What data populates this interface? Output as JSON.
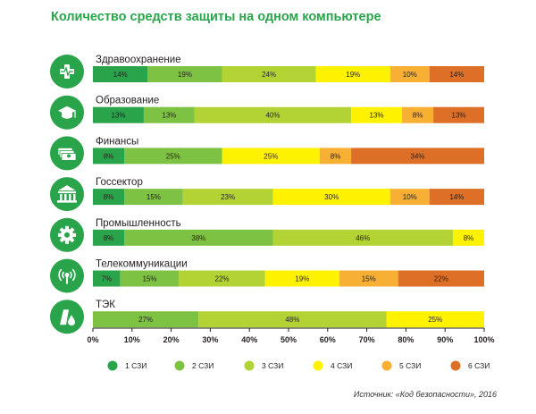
{
  "title": "Количество средств защиты на одном компьютере",
  "source": "Источник: «Код безопасности», 2016",
  "colors": {
    "icon_bg": "#2aa44a",
    "axis": "#231f20",
    "segments": [
      "#2aa44a",
      "#7dc242",
      "#b3d335",
      "#fff200",
      "#f7b033",
      "#dd6f27"
    ]
  },
  "chart_data": {
    "type": "bar",
    "orientation": "horizontal",
    "stacked": true,
    "title": "Количество средств защиты на одном компьютере",
    "xlim": [
      0,
      100
    ],
    "x_ticks": [
      "0%",
      "10%",
      "20%",
      "30%",
      "40%",
      "50%",
      "60%",
      "70%",
      "80%",
      "90%",
      "100%"
    ],
    "legend_position": "bottom",
    "grid": false,
    "series": [
      {
        "name": "1 СЗИ",
        "color": "#2aa44a"
      },
      {
        "name": "2 СЗИ",
        "color": "#7dc242"
      },
      {
        "name": "3 СЗИ",
        "color": "#b3d335"
      },
      {
        "name": "4 СЗИ",
        "color": "#fff200"
      },
      {
        "name": "5 СЗИ",
        "color": "#f7b033"
      },
      {
        "name": "6 СЗИ",
        "color": "#dd6f27"
      }
    ],
    "categories": [
      {
        "name": "Здравоохранение",
        "icon": "medical-cross-icon",
        "values": [
          14,
          19,
          24,
          19,
          10,
          14
        ]
      },
      {
        "name": "Образование",
        "icon": "graduation-cap-icon",
        "values": [
          13,
          13,
          40,
          13,
          8,
          13
        ]
      },
      {
        "name": "Финансы",
        "icon": "money-stack-icon",
        "values": [
          8,
          25,
          25,
          8,
          34
        ]
      },
      {
        "name": "Госсектор",
        "icon": "government-building-icon",
        "values": [
          8,
          15,
          23,
          30,
          10,
          14
        ]
      },
      {
        "name": "Промышленность",
        "icon": "gear-icon",
        "values": [
          8,
          38,
          46,
          8
        ]
      },
      {
        "name": "Телекоммуникации",
        "icon": "antenna-signal-icon",
        "values": [
          7,
          15,
          22,
          19,
          15,
          22
        ]
      },
      {
        "name": "ТЭК",
        "icon": "oil-drop-icon",
        "values": [
          27,
          48,
          25
        ]
      }
    ],
    "segment_series_index": [
      [
        0,
        1,
        2,
        3,
        4,
        5
      ],
      [
        0,
        1,
        2,
        3,
        4,
        5
      ],
      [
        0,
        1,
        3,
        4,
        5
      ],
      [
        0,
        1,
        2,
        3,
        4,
        5
      ],
      [
        0,
        1,
        2,
        3
      ],
      [
        0,
        1,
        2,
        3,
        4,
        5
      ],
      [
        1,
        2,
        3
      ]
    ]
  }
}
